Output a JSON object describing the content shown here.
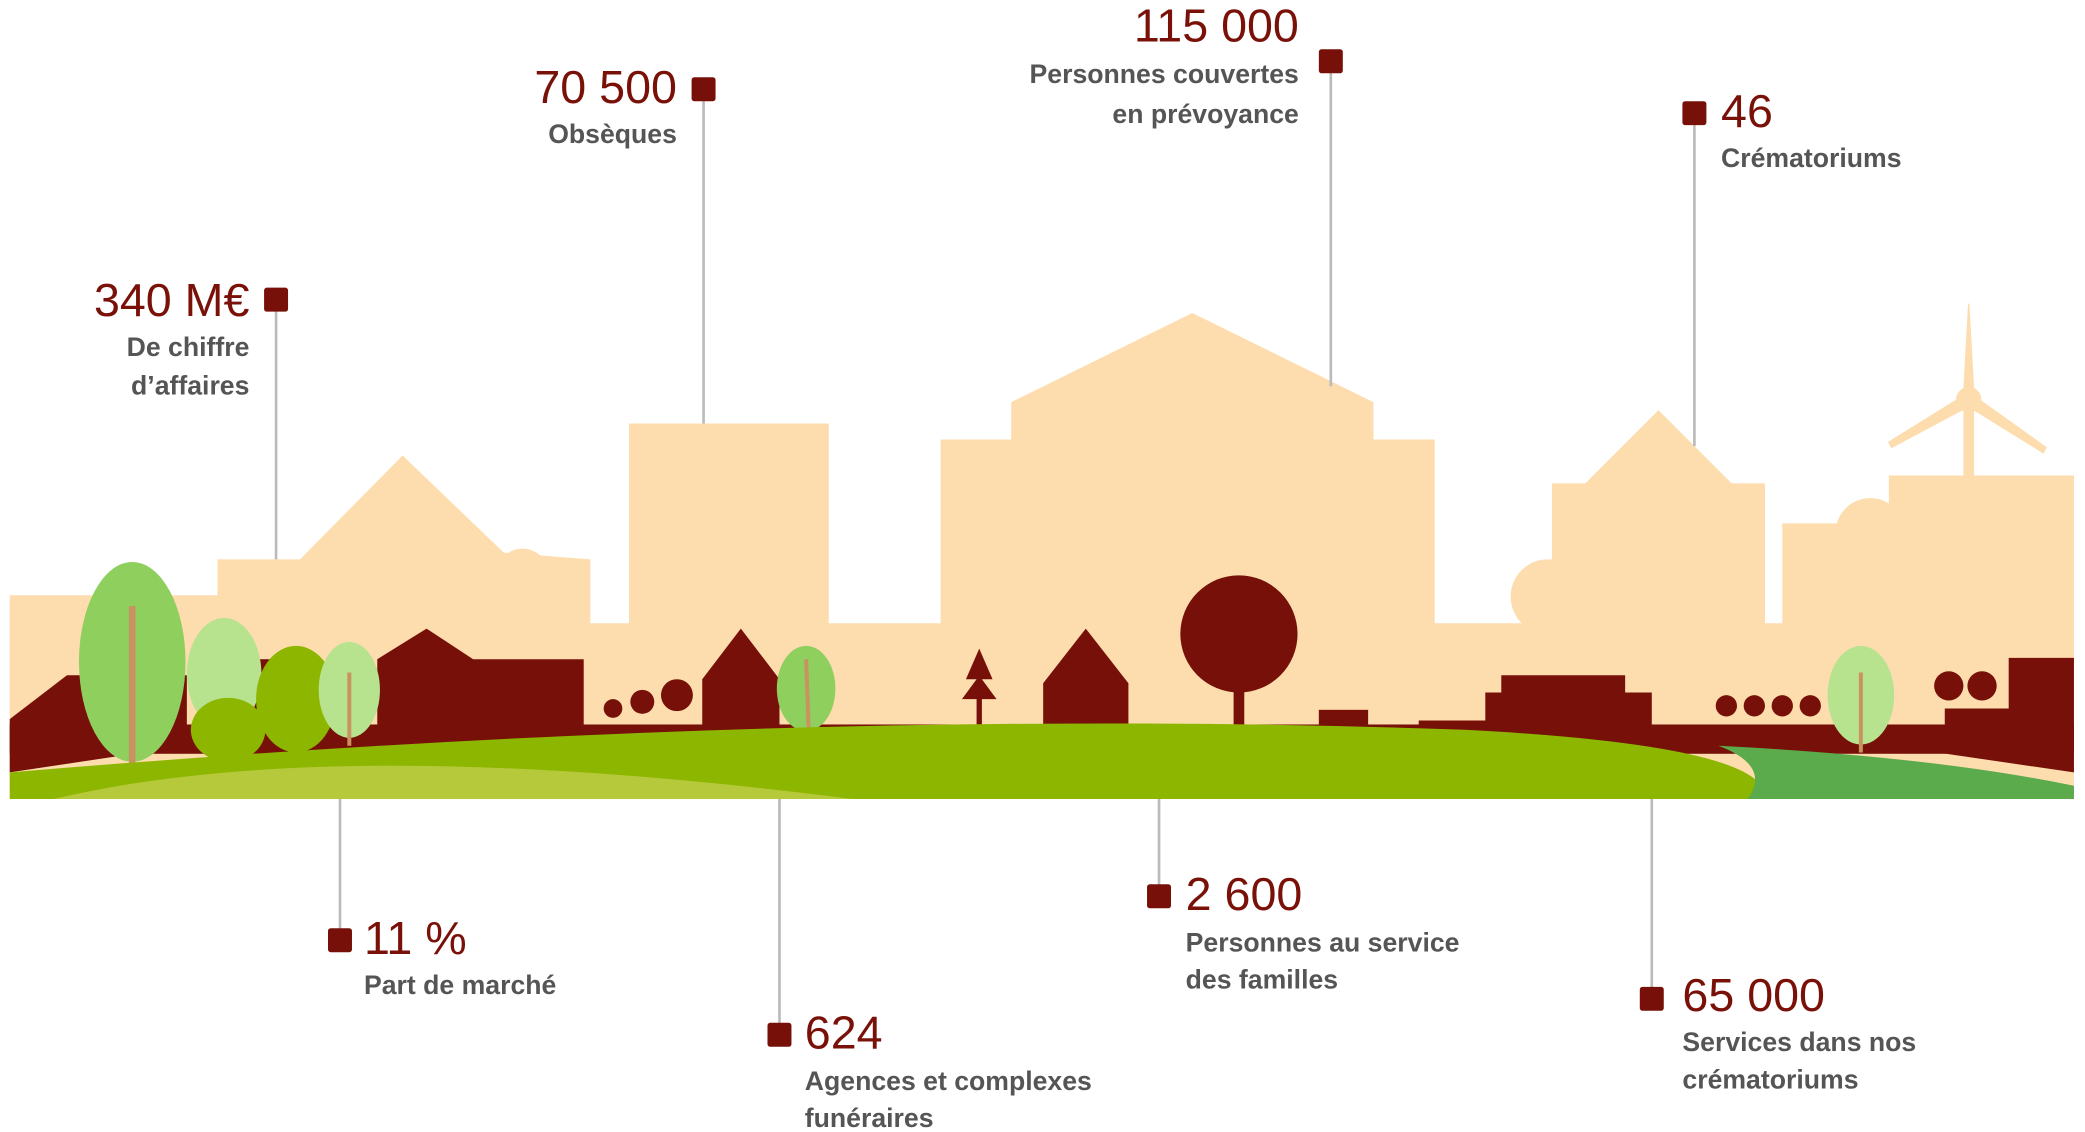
{
  "stats": [
    {
      "value": "340 M€",
      "label": [
        "De chiffre",
        "d’affaires"
      ]
    },
    {
      "value": "70 500",
      "label": [
        "Obsèques"
      ]
    },
    {
      "value": "115 000",
      "label": [
        "Personnes couvertes",
        "en prévoyance"
      ]
    },
    {
      "value": "46",
      "label": [
        "Crématoriums"
      ]
    },
    {
      "value": "11 %",
      "label": [
        "Part de marché"
      ]
    },
    {
      "value": "624",
      "label": [
        "Agences et complexes",
        "funéraires"
      ]
    },
    {
      "value": "2 600",
      "label": [
        "Personnes au service",
        "des familles"
      ]
    },
    {
      "value": "65 000",
      "label": [
        "Services dans nos",
        "crématoriums"
      ]
    }
  ]
}
